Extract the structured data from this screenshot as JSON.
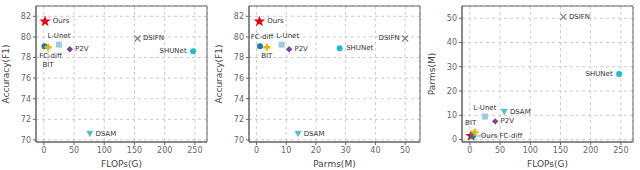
{
  "chart_data": [
    {
      "type": "scatter",
      "xlabel": "FLOPs(G)",
      "ylabel": "Accuracy(F1)",
      "xlim": [
        -13,
        270
      ],
      "ylim": [
        69.8,
        83
      ],
      "xticks": [
        0,
        50,
        100,
        150,
        200,
        250
      ],
      "yticks": [
        70,
        72,
        74,
        76,
        78,
        80,
        82
      ],
      "grid": true,
      "series": [
        {
          "name": "Ours",
          "color": "#e8000d",
          "marker": "star",
          "x": [
            2
          ],
          "values": [
            81.5
          ]
        },
        {
          "name": "FC-diff",
          "color": "#1f77b4",
          "marker": "circle",
          "x": [
            1
          ],
          "values": [
            79.1
          ]
        },
        {
          "name": "L-Unet",
          "color": "#9ecae1",
          "marker": "square",
          "x": [
            25
          ],
          "values": [
            79.25
          ]
        },
        {
          "name": "BIT",
          "color": "#e6b800",
          "marker": "plus",
          "x": [
            7
          ],
          "values": [
            79.0
          ]
        },
        {
          "name": "P2V",
          "color": "#7b3fa0",
          "marker": "diamond",
          "x": [
            43
          ],
          "values": [
            78.8
          ]
        },
        {
          "name": "DSIFN",
          "color": "#808080",
          "marker": "x",
          "x": [
            155
          ],
          "values": [
            79.85
          ]
        },
        {
          "name": "SHUNet",
          "color": "#17becf",
          "marker": "circle",
          "x": [
            247
          ],
          "values": [
            78.6
          ]
        },
        {
          "name": "DSAM",
          "color": "#56c0c8",
          "marker": "triangle_down",
          "x": [
            76
          ],
          "values": [
            70.6
          ]
        }
      ]
    },
    {
      "type": "scatter",
      "xlabel": "Parms(M)",
      "ylabel": "Accuracy(F1)",
      "xlim": [
        -2.5,
        55
      ],
      "ylim": [
        69.8,
        83
      ],
      "xticks": [
        0,
        10,
        20,
        30,
        40,
        50
      ],
      "yticks": [
        70,
        72,
        74,
        76,
        78,
        80,
        82
      ],
      "grid": true,
      "series": [
        {
          "name": "Ours",
          "color": "#e8000d",
          "marker": "star",
          "x": [
            1.0
          ],
          "values": [
            81.5
          ]
        },
        {
          "name": "FC-diff",
          "color": "#1f77b4",
          "marker": "circle",
          "x": [
            1.2
          ],
          "values": [
            79.1
          ]
        },
        {
          "name": "L-Unet",
          "color": "#9ecae1",
          "marker": "square",
          "x": [
            8.5
          ],
          "values": [
            79.25
          ]
        },
        {
          "name": "BIT",
          "color": "#e6b800",
          "marker": "plus",
          "x": [
            3.5
          ],
          "values": [
            79.0
          ]
        },
        {
          "name": "P2V",
          "color": "#7b3fa0",
          "marker": "diamond",
          "x": [
            11
          ],
          "values": [
            78.8
          ]
        },
        {
          "name": "DSIFN",
          "color": "#808080",
          "marker": "x",
          "x": [
            50
          ],
          "values": [
            79.85
          ]
        },
        {
          "name": "SHUNet",
          "color": "#17becf",
          "marker": "circle",
          "x": [
            28
          ],
          "values": [
            78.9
          ]
        },
        {
          "name": "DSAM",
          "color": "#56c0c8",
          "marker": "triangle_down",
          "x": [
            14
          ],
          "values": [
            70.6
          ]
        }
      ]
    },
    {
      "type": "scatter",
      "xlabel": "FLOPs(G)",
      "ylabel": "Parms(M)",
      "xlim": [
        -13,
        270
      ],
      "ylim": [
        -1,
        55
      ],
      "xticks": [
        0,
        50,
        100,
        150,
        200,
        250
      ],
      "yticks": [
        0,
        10,
        20,
        30,
        40,
        50
      ],
      "grid": true,
      "series": [
        {
          "name": "Ours",
          "color": "#e8000d",
          "marker": "star",
          "x": [
            2
          ],
          "values": [
            1.5
          ]
        },
        {
          "name": "FC-diff",
          "color": "#1f77b4",
          "marker": "circle",
          "x": [
            5
          ],
          "values": [
            1.5
          ]
        },
        {
          "name": "L-Unet",
          "color": "#9ecae1",
          "marker": "square",
          "x": [
            25
          ],
          "values": [
            9.5
          ]
        },
        {
          "name": "BIT",
          "color": "#e6b800",
          "marker": "plus",
          "x": [
            8
          ],
          "values": [
            3.0
          ]
        },
        {
          "name": "P2V",
          "color": "#7b3fa0",
          "marker": "diamond",
          "x": [
            42
          ],
          "values": [
            7.5
          ]
        },
        {
          "name": "DSIFN",
          "color": "#808080",
          "marker": "x",
          "x": [
            155
          ],
          "values": [
            50.5
          ]
        },
        {
          "name": "SHUNet",
          "color": "#17becf",
          "marker": "circle",
          "x": [
            247
          ],
          "values": [
            27
          ]
        },
        {
          "name": "DSAM",
          "color": "#56c0c8",
          "marker": "triangle_down",
          "x": [
            57
          ],
          "values": [
            11.5
          ]
        }
      ]
    }
  ]
}
